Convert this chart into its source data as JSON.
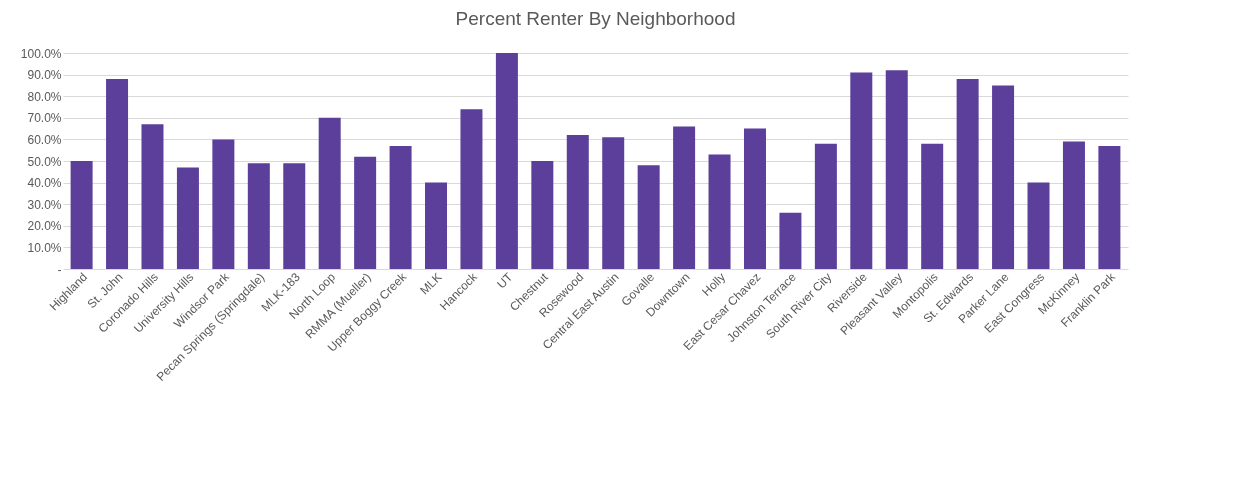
{
  "chart_data": {
    "type": "bar",
    "title": "Percent Renter By Neighborhood",
    "categories": [
      "Highland",
      "St. John",
      "Coronado Hills",
      "University Hills",
      "Windsor Park",
      "Pecan Springs (Springdale)",
      "MLK-183",
      "North Loop",
      "RMMA (Mueller)",
      "Upper Boggy Creek",
      "MLK",
      "Hancock",
      "UT",
      "Chestnut",
      "Rosewood",
      "Central East Austin",
      "Govalle",
      "Downtown",
      "Holly",
      "East Cesar Chavez",
      "Johnston Terrace",
      "South River City",
      "Riverside",
      "Pleasant Valley",
      "Montopolis",
      "St. Edwards",
      "Parker Lane",
      "East Congress",
      "McKinney",
      "Franklin Park"
    ],
    "values": [
      50,
      88,
      67,
      47,
      60,
      49,
      49,
      70,
      52,
      57,
      40,
      74,
      100,
      50,
      62,
      61,
      48,
      66,
      53,
      65,
      26,
      58,
      91,
      92,
      58,
      88,
      85,
      40,
      59,
      57
    ],
    "color": "#5b3f9a",
    "ylim": [
      0,
      100
    ],
    "yticks": [
      {
        "value": 0,
        "label": "-"
      },
      {
        "value": 10,
        "label": "10.0%"
      },
      {
        "value": 20,
        "label": "20.0%"
      },
      {
        "value": 30,
        "label": "30.0%"
      },
      {
        "value": 40,
        "label": "40.0%"
      },
      {
        "value": 50,
        "label": "50.0%"
      },
      {
        "value": 60,
        "label": "60.0%"
      },
      {
        "value": 70,
        "label": "70.0%"
      },
      {
        "value": 80,
        "label": "80.0%"
      },
      {
        "value": 90,
        "label": "90.0%"
      },
      {
        "value": 100,
        "label": "100.0%"
      }
    ],
    "grid": true
  }
}
